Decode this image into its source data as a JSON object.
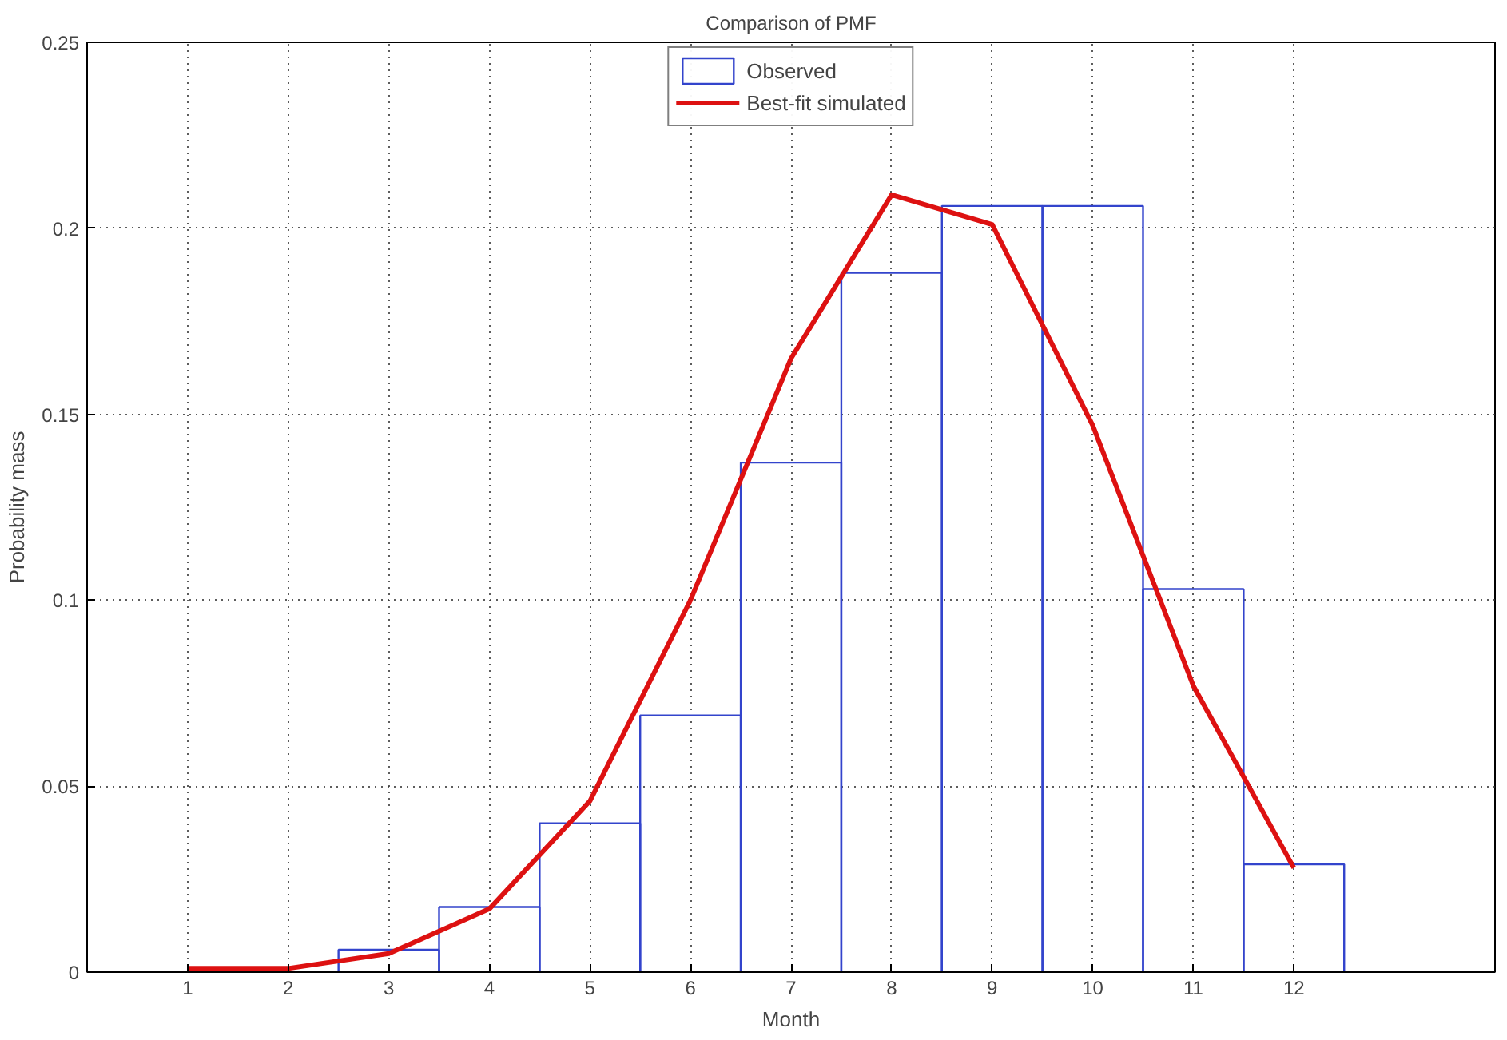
{
  "chart_data": {
    "type": "bar",
    "title": "Comparison of PMF",
    "xlabel": "Month",
    "ylabel": "Probability mass",
    "x": [
      1,
      2,
      3,
      4,
      5,
      6,
      7,
      8,
      9,
      10,
      11,
      12
    ],
    "series": [
      {
        "name": "Observed",
        "color": "#3344cc",
        "values": [
          0,
          0,
          0.006,
          0.0175,
          0.04,
          0.069,
          0.137,
          0.188,
          0.206,
          0.206,
          0.103,
          0.029
        ]
      },
      {
        "name": "Best-fit simulated",
        "type": "line",
        "color": "#dd1111",
        "values": [
          0.001,
          0.001,
          0.005,
          0.017,
          0.046,
          0.1,
          0.165,
          0.209,
          0.201,
          0.147,
          0.077,
          0.028
        ]
      }
    ],
    "xlim": [
      0,
      14
    ],
    "ylim": [
      0,
      0.25
    ],
    "xticks": [
      1,
      2,
      3,
      4,
      5,
      6,
      7,
      8,
      9,
      10,
      11,
      12
    ],
    "yticks": [
      0,
      0.05,
      0.1,
      0.15,
      0.2,
      0.25
    ],
    "grid": true,
    "legend": "top",
    "line_style": "solid",
    "marker": "none"
  }
}
